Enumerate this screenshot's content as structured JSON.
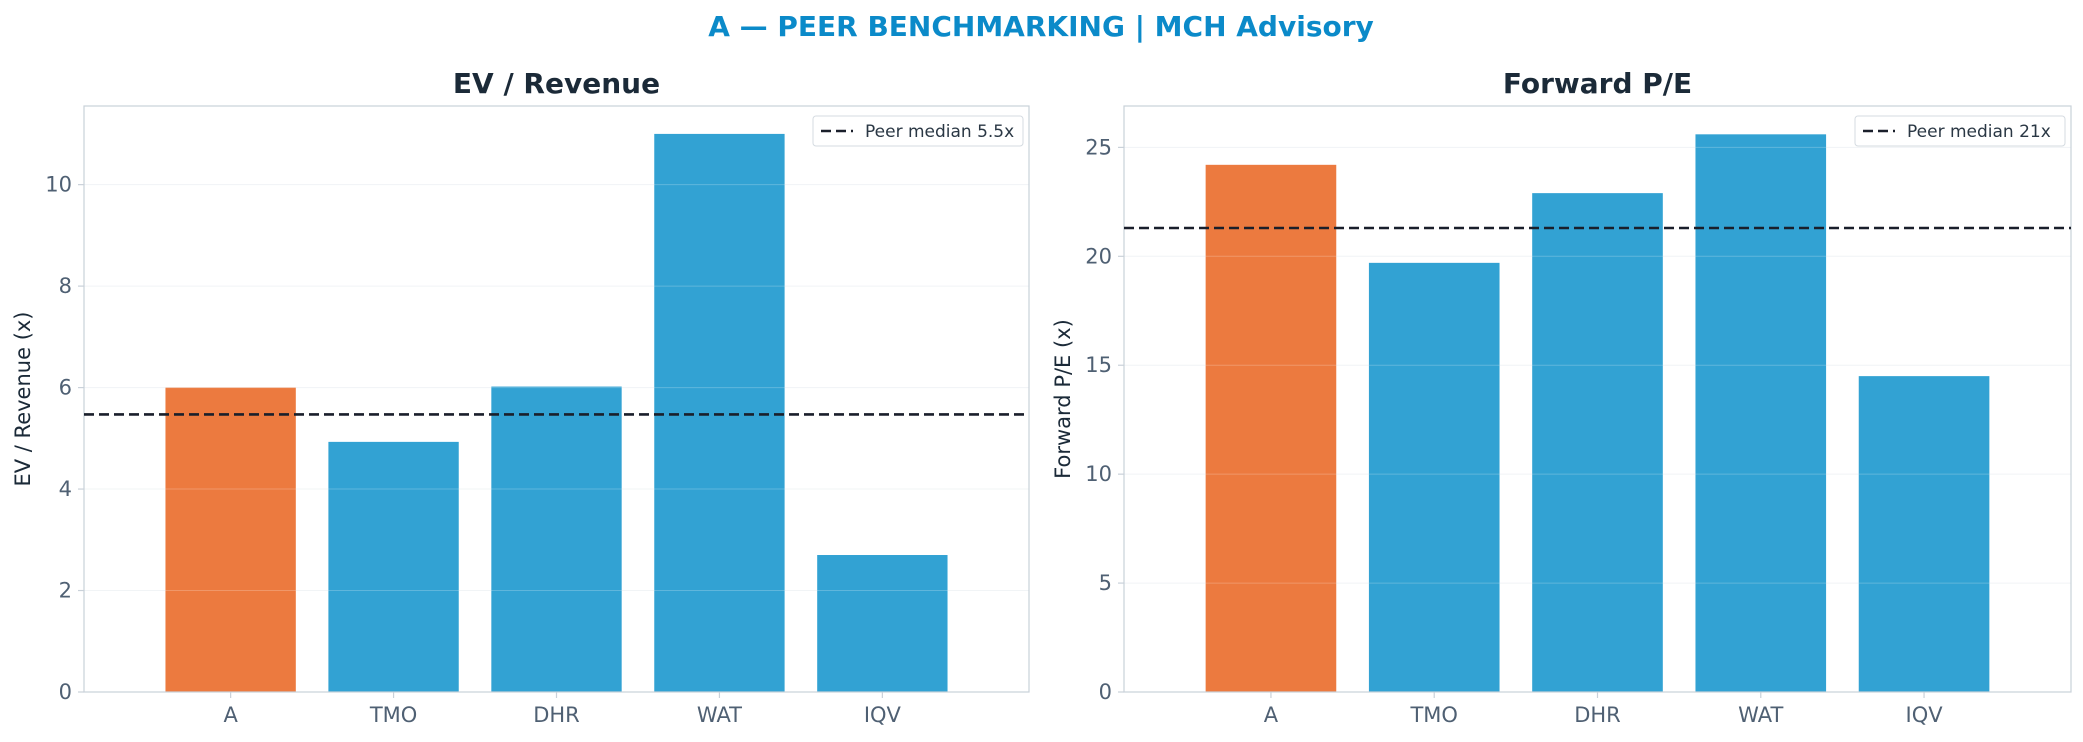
{
  "figure": {
    "title": "A — PEER BENCHMARKING | MCH Advisory",
    "title_color": "#0b8ac9"
  },
  "colors": {
    "highlight": "#ec7a3f",
    "peer": "#32a2d3",
    "median_line": "#1a1f2b",
    "axes_edge": "#c9d1d9",
    "grid": "#eef1f4"
  },
  "chart_data": [
    {
      "type": "bar",
      "title": "EV / Revenue",
      "xlabel": "",
      "ylabel": "EV / Revenue (x)",
      "categories": [
        "A",
        "TMO",
        "DHR",
        "WAT",
        "IQV"
      ],
      "values": [
        6.0,
        4.93,
        6.02,
        11.0,
        2.7
      ],
      "highlight_category": "A",
      "ylim": [
        0,
        11.55
      ],
      "yticks": [
        0,
        2,
        4,
        6,
        8,
        10
      ],
      "reference_line": {
        "value": 5.47,
        "label": "Peer median 5.5x",
        "style": "dashed"
      },
      "legend_position": "top-right",
      "grid": true
    },
    {
      "type": "bar",
      "title": "Forward P/E",
      "xlabel": "",
      "ylabel": "Forward P/E (x)",
      "categories": [
        "A",
        "TMO",
        "DHR",
        "WAT",
        "IQV"
      ],
      "values": [
        24.2,
        19.7,
        22.9,
        25.6,
        14.5
      ],
      "highlight_category": "A",
      "ylim": [
        0,
        26.9
      ],
      "yticks": [
        0,
        5,
        10,
        15,
        20,
        25
      ],
      "reference_line": {
        "value": 21.3,
        "label": "Peer median 21x",
        "style": "dashed"
      },
      "legend_position": "top-right",
      "grid": true
    }
  ]
}
